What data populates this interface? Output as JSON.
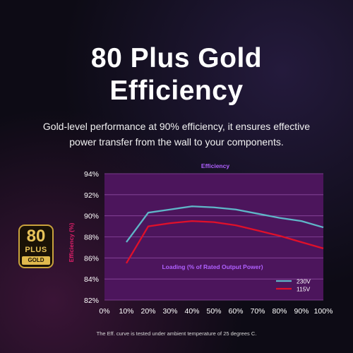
{
  "headline": {
    "line1": "80 Plus Gold",
    "line2": "Efficiency"
  },
  "subtitle": "Gold-level performance at 90% efficiency, it ensures effective power transfer from the wall to your components.",
  "badge": {
    "top": "80",
    "middle": "PLUS",
    "bottom": "GOLD",
    "color": "#e0b94d"
  },
  "footnote": "The Eff. curve is tested under ambient temperature of 25 degrees C.",
  "colors": {
    "plot_background": "#4c155c",
    "grid": "#8c4aa0",
    "title": "#b060ff",
    "axis_label": "#b060ff",
    "ylabel": "#e0206a"
  },
  "chart_data": {
    "type": "line",
    "title": "Efficiency",
    "xlabel": "Loading (% of Rated Output Power)",
    "ylabel": "Efficiency (%)",
    "x_ticks": [
      "0%",
      "10%",
      "20%",
      "30%",
      "40%",
      "50%",
      "60%",
      "70%",
      "80%",
      "90%",
      "100%"
    ],
    "y_ticks": [
      "82%",
      "84%",
      "86%",
      "88%",
      "90%",
      "92%",
      "94%"
    ],
    "xlim": [
      0,
      100
    ],
    "ylim": [
      82,
      94
    ],
    "grid": "horizontal",
    "legend_position": "bottom-right",
    "x": [
      10,
      20,
      30,
      40,
      50,
      60,
      70,
      80,
      90,
      100
    ],
    "series": [
      {
        "name": "230V",
        "color": "#5fb6c8",
        "values": [
          87.5,
          90.3,
          90.6,
          90.9,
          90.8,
          90.6,
          90.2,
          89.8,
          89.5,
          88.9
        ]
      },
      {
        "name": "115V",
        "color": "#e0102a",
        "values": [
          85.5,
          89.0,
          89.3,
          89.5,
          89.4,
          89.1,
          88.6,
          88.1,
          87.5,
          86.9
        ]
      }
    ]
  }
}
